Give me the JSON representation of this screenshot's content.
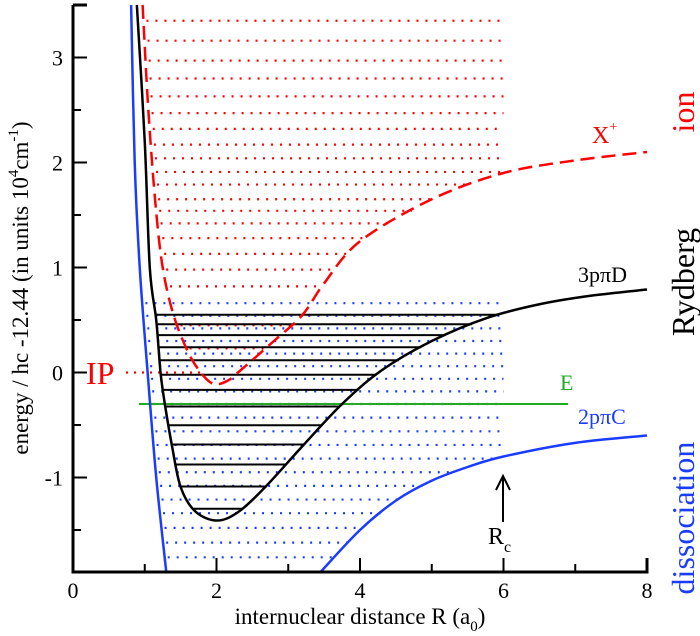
{
  "chart_data": {
    "type": "line",
    "title": "",
    "xlabel": "internuclear distance R (a",
    "xlabel_sub": "0",
    "xlabel_end": ")",
    "ylabel": "energy / hc -12.44 (in units 10",
    "ylabel_sup": "4",
    "ylabel_mid": "cm",
    "ylabel_sup2": "-1",
    "ylabel_end": ")",
    "xlim": [
      0,
      8
    ],
    "ylim": [
      -1.9,
      3.5
    ],
    "x_ticks": [
      "0",
      "2",
      "4",
      "6",
      "8"
    ],
    "x_tick_values": [
      0,
      2,
      4,
      6,
      8
    ],
    "y_ticks": [
      "-1",
      "0",
      "1",
      "2",
      "3"
    ],
    "y_tick_values": [
      -1,
      0,
      1,
      2,
      3
    ],
    "colors": {
      "ion": "#ff0000",
      "rydberg": "#000000",
      "dissociation": "#1a3cff",
      "E": "#22aa22"
    },
    "series": [
      {
        "name": "X+ ion",
        "style": "dashed",
        "color": "#ff0000",
        "points": [
          [
            0.97,
            3.5
          ],
          [
            1.05,
            2.5
          ],
          [
            1.15,
            1.6
          ],
          [
            1.25,
            1.0
          ],
          [
            1.4,
            0.55
          ],
          [
            1.6,
            0.2
          ],
          [
            1.78,
            0.0
          ],
          [
            1.96,
            -0.11
          ],
          [
            2.15,
            -0.08
          ],
          [
            2.3,
            0.0
          ],
          [
            2.8,
            0.3
          ],
          [
            3.2,
            0.55
          ],
          [
            3.5,
            0.85
          ],
          [
            4,
            1.25
          ],
          [
            5,
            1.65
          ],
          [
            6,
            1.9
          ],
          [
            7,
            2.02
          ],
          [
            8,
            2.1
          ]
        ]
      },
      {
        "name": "3pπD",
        "style": "solid",
        "color": "#000000",
        "points": [
          [
            0.89,
            3.5
          ],
          [
            1.0,
            2.2
          ],
          [
            1.07,
            1.0
          ],
          [
            1.16,
            0.5
          ],
          [
            1.22,
            0
          ],
          [
            1.28,
            -0.3
          ],
          [
            1.38,
            -0.7
          ],
          [
            1.5,
            -1.09
          ],
          [
            1.7,
            -1.32
          ],
          [
            2,
            -1.41
          ],
          [
            2.3,
            -1.33
          ],
          [
            2.68,
            -1.09
          ],
          [
            3.2,
            -0.7
          ],
          [
            3.75,
            -0.3
          ],
          [
            4.3,
            0.02
          ],
          [
            5.0,
            0.3
          ],
          [
            5.77,
            0.52
          ],
          [
            6.5,
            0.65
          ],
          [
            7.2,
            0.73
          ],
          [
            8,
            0.79
          ]
        ]
      },
      {
        "name": "2pπC wall",
        "style": "solid",
        "color": "#1a3cff",
        "points": [
          [
            0.81,
            3.5
          ],
          [
            0.86,
            2.0
          ],
          [
            0.93,
            1.0
          ],
          [
            1.04,
            0.0
          ],
          [
            1.16,
            -1.0
          ],
          [
            1.3,
            -1.9
          ]
        ]
      },
      {
        "name": "2pπC",
        "style": "solid",
        "color": "#1a3cff",
        "points": [
          [
            3.45,
            -1.9
          ],
          [
            4,
            -1.5
          ],
          [
            4.5,
            -1.22
          ],
          [
            5,
            -1.03
          ],
          [
            5.5,
            -0.9
          ],
          [
            6,
            -0.8
          ],
          [
            7,
            -0.67
          ],
          [
            8,
            -0.6
          ]
        ]
      }
    ],
    "rydberg_levels": [
      0.55,
      0.46,
      0.356,
      0.241,
      0.117,
      -0.022,
      -0.165,
      -0.324,
      -0.502,
      -0.686,
      -0.876,
      -1.086,
      -1.298
    ],
    "ion_continuum_levels": [
      3.35,
      3.16,
      2.97,
      2.8,
      2.63,
      2.47,
      2.32,
      2.17,
      2.04,
      1.91,
      1.79,
      1.65,
      1.54,
      1.42,
      1.28,
      1.13,
      0.98,
      0.82,
      0.45,
      0.23
    ],
    "dissociation_continuum_levels": [
      0.66,
      0.54,
      0.42,
      0.3,
      0.18,
      0.06,
      -0.06,
      -0.18,
      -0.3,
      -0.43,
      -0.56,
      -0.69,
      -0.82,
      -0.95,
      -1.08,
      -1.21,
      -1.34,
      -1.48,
      -1.62,
      -1.76,
      -1.9
    ],
    "continuum_x_max": 6,
    "E_level": {
      "label": "E",
      "energy": -0.3,
      "x_range": [
        0.92,
        6.9
      ]
    },
    "IP_level": {
      "label": "IP",
      "energy": 0
    },
    "Rc": {
      "label": "R",
      "sub": "c",
      "x": 6
    },
    "annotations": {
      "ion_curve_label": "X",
      "ion_curve_sup": "+",
      "rydberg_curve_label": "3pπD",
      "dissociation_curve_label": "2pπC",
      "side_ion": "ion",
      "side_rydberg": "Rydberg",
      "side_dissociation": "dissociation"
    }
  }
}
